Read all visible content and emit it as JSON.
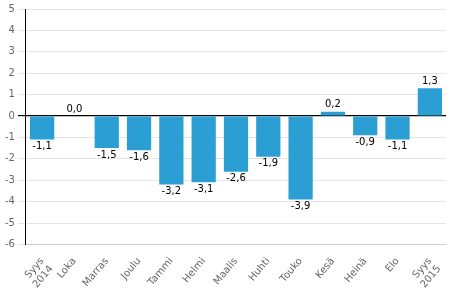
{
  "chart_data": {
    "type": "bar",
    "categories": [
      "Syys",
      "Loka",
      "Marras",
      "Joulu",
      "Tammi",
      "Helmi",
      "Maalis",
      "Huhti",
      "Touko",
      "Kesä",
      "Heinä",
      "Elo",
      "Syys"
    ],
    "values": [
      -1.1,
      0.0,
      -1.5,
      -1.6,
      -3.2,
      -3.1,
      -2.6,
      -1.9,
      -3.9,
      0.2,
      -0.9,
      -1.1,
      1.3
    ],
    "value_labels": [
      "-1,1",
      "0,0",
      "-1,5",
      "-1,6",
      "-3,2",
      "-3,1",
      "-2,6",
      "-1,9",
      "-3,9",
      "0,2",
      "-0,9",
      "-1,1",
      "1,3"
    ],
    "data_labels": true,
    "color": "#2b9fd4",
    "ylim": [
      -6,
      5
    ],
    "yticks": [
      -6,
      -5,
      -4,
      -3,
      -2,
      -1,
      0,
      1,
      2,
      3,
      4,
      5
    ],
    "grid": true,
    "annotations": [
      {
        "text": "2014",
        "x": 0
      },
      {
        "text": "2015",
        "x": 12
      }
    ]
  }
}
